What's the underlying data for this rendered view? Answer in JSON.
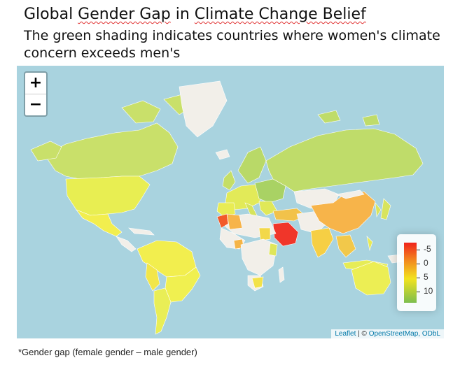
{
  "title": {
    "part1": "Global ",
    "part2": "Gender Gap",
    "part3": " in ",
    "part4": "Climate Change Belief"
  },
  "subtitle": "The green shading indicates countries where women's climate concern exceeds men's",
  "zoom": {
    "in_label": "+",
    "out_label": "−"
  },
  "legend": {
    "ticks": [
      "-5",
      "0",
      "5",
      "10"
    ],
    "colors": [
      "#f0231c",
      "#f28a1e",
      "#f2e31e",
      "#7cbe4e"
    ]
  },
  "attribution": {
    "leaflet": "Leaflet",
    "sep": " | © ",
    "osm": "OpenStreetMap",
    "odbl": ", ODbL"
  },
  "footnote": "*Gender gap (female gender – male gender)",
  "map_colors": {
    "ocean": "#a9d3df",
    "no_data": "#f2efe9",
    "canada": "#c9e06a",
    "usa": "#e8ee52",
    "mexico": "#f2ee4e",
    "south_america": "#f2ee4e",
    "europe": "#b9d968",
    "russia": "#bfdc6a",
    "china": "#f7b44a",
    "india": "#f6cf44",
    "saudi": "#f0362a",
    "morocco": "#f25a2a",
    "australia": "#ecee54"
  }
}
